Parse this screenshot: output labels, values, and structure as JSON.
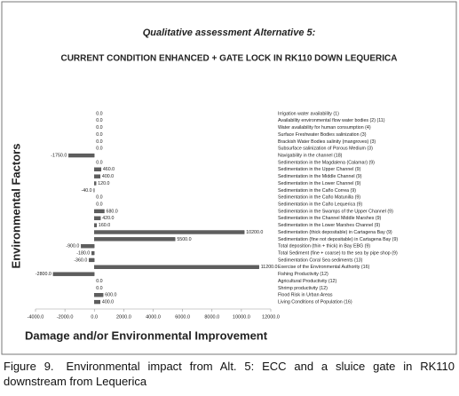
{
  "chart_data": {
    "type": "hbar",
    "title": "Qualitative assessment Alternative 5:",
    "subtitle": "CURRENT CONDITION ENHANCED + GATE LOCK IN RK110 DOWN LEQUERICA",
    "y_label": "Environmental Factors",
    "x_label": "Damage and/or Environmental Improvement",
    "figure_label": "Figure 9.",
    "caption": "Environmental impact from Alt. 5: ECC and a sluice gate in RK110 downstream from Lequerica",
    "categories": [
      "Irrigation water availability (1)",
      "Availability environmental flow water bodies (2) (11)",
      "Water availability for human consumption (4)",
      "Surface Freshwater Bodies salinization (3)",
      "Brackish Water Bodies salinity (mangroves) (3)",
      "Subsurface salinization of Porous Medium (3)",
      "Navigability in the channel (18)",
      "Sedimentation in the Magdalena (Calamar) (9)",
      "Sedimentation in the Upper Channel (9)",
      "Sedimentation in the Middle Channel (9)",
      "Sedimentation in the Lower Channel (9)",
      "Sedimentation in the Caño Correa (9)",
      "Sedimentation in the Caño Matunilla (9)",
      "Sedimentation in the Caño Lequerica (9)",
      "Sedimentation in the Swamps of the Upper Channel (9)",
      "Sedimentation in the Channel Middle Marshes (9)",
      "Sedimentation in the Lower Marshes Channel (9)",
      "Sedimentation (thick depositable) in Cartagena Bay (9)",
      "Sedimentation (fine not depositable) in Cartagena Bay (9)",
      "Total deposition (thin + thick) in Bay EBG (9)",
      "Total Sediment (fine + coarse) to the sea by pipe shop (9)",
      "Sedimentation Coral Sea sediments (13)",
      "Exercise of the Environmental Authority (16)",
      "Fishing Productivity (12)",
      "Agricultural Productivity (12)",
      "Shrimp productivity (12)",
      "Flood Risk in Urban Areas",
      "Living Conditions of Population (16)"
    ],
    "values": [
      0,
      0,
      0,
      0,
      0,
      0,
      -1750,
      0,
      460,
      400,
      120,
      -40,
      0,
      0,
      680,
      420,
      160,
      10200,
      5500,
      -900,
      -180,
      -360,
      11200,
      -2800,
      0,
      0,
      600,
      400
    ],
    "value_labels": [
      "0.0",
      "0.0",
      "0.0",
      "0.0",
      "0.0",
      "0.0",
      "-1750.0",
      "0.0",
      "460.0",
      "400.0",
      "120.0",
      "-40.0",
      "0.0",
      "0.0",
      "680.0",
      "420.0",
      "160.0",
      "10200.0",
      "5500.0",
      "-900.0",
      "-180.0",
      "-360.0",
      "11200.0",
      "-2800.0",
      "0.0",
      "0.0",
      "600.0",
      "400.0"
    ],
    "color": "#5e5e5e",
    "xlim": [
      -4000,
      12000
    ],
    "xticks": [
      {
        "value": -4000,
        "label": "-4000.0"
      },
      {
        "value": -2000,
        "label": "-2000.0"
      },
      {
        "value": 0,
        "label": "0.0"
      },
      {
        "value": 2000,
        "label": "2000.0"
      },
      {
        "value": 4000,
        "label": "4000.0"
      },
      {
        "value": 6000,
        "label": "6000.0"
      },
      {
        "value": 8000,
        "label": "8000.0"
      },
      {
        "value": 10000,
        "label": "10000.0"
      },
      {
        "value": 12000,
        "label": "12000.0"
      }
    ]
  }
}
